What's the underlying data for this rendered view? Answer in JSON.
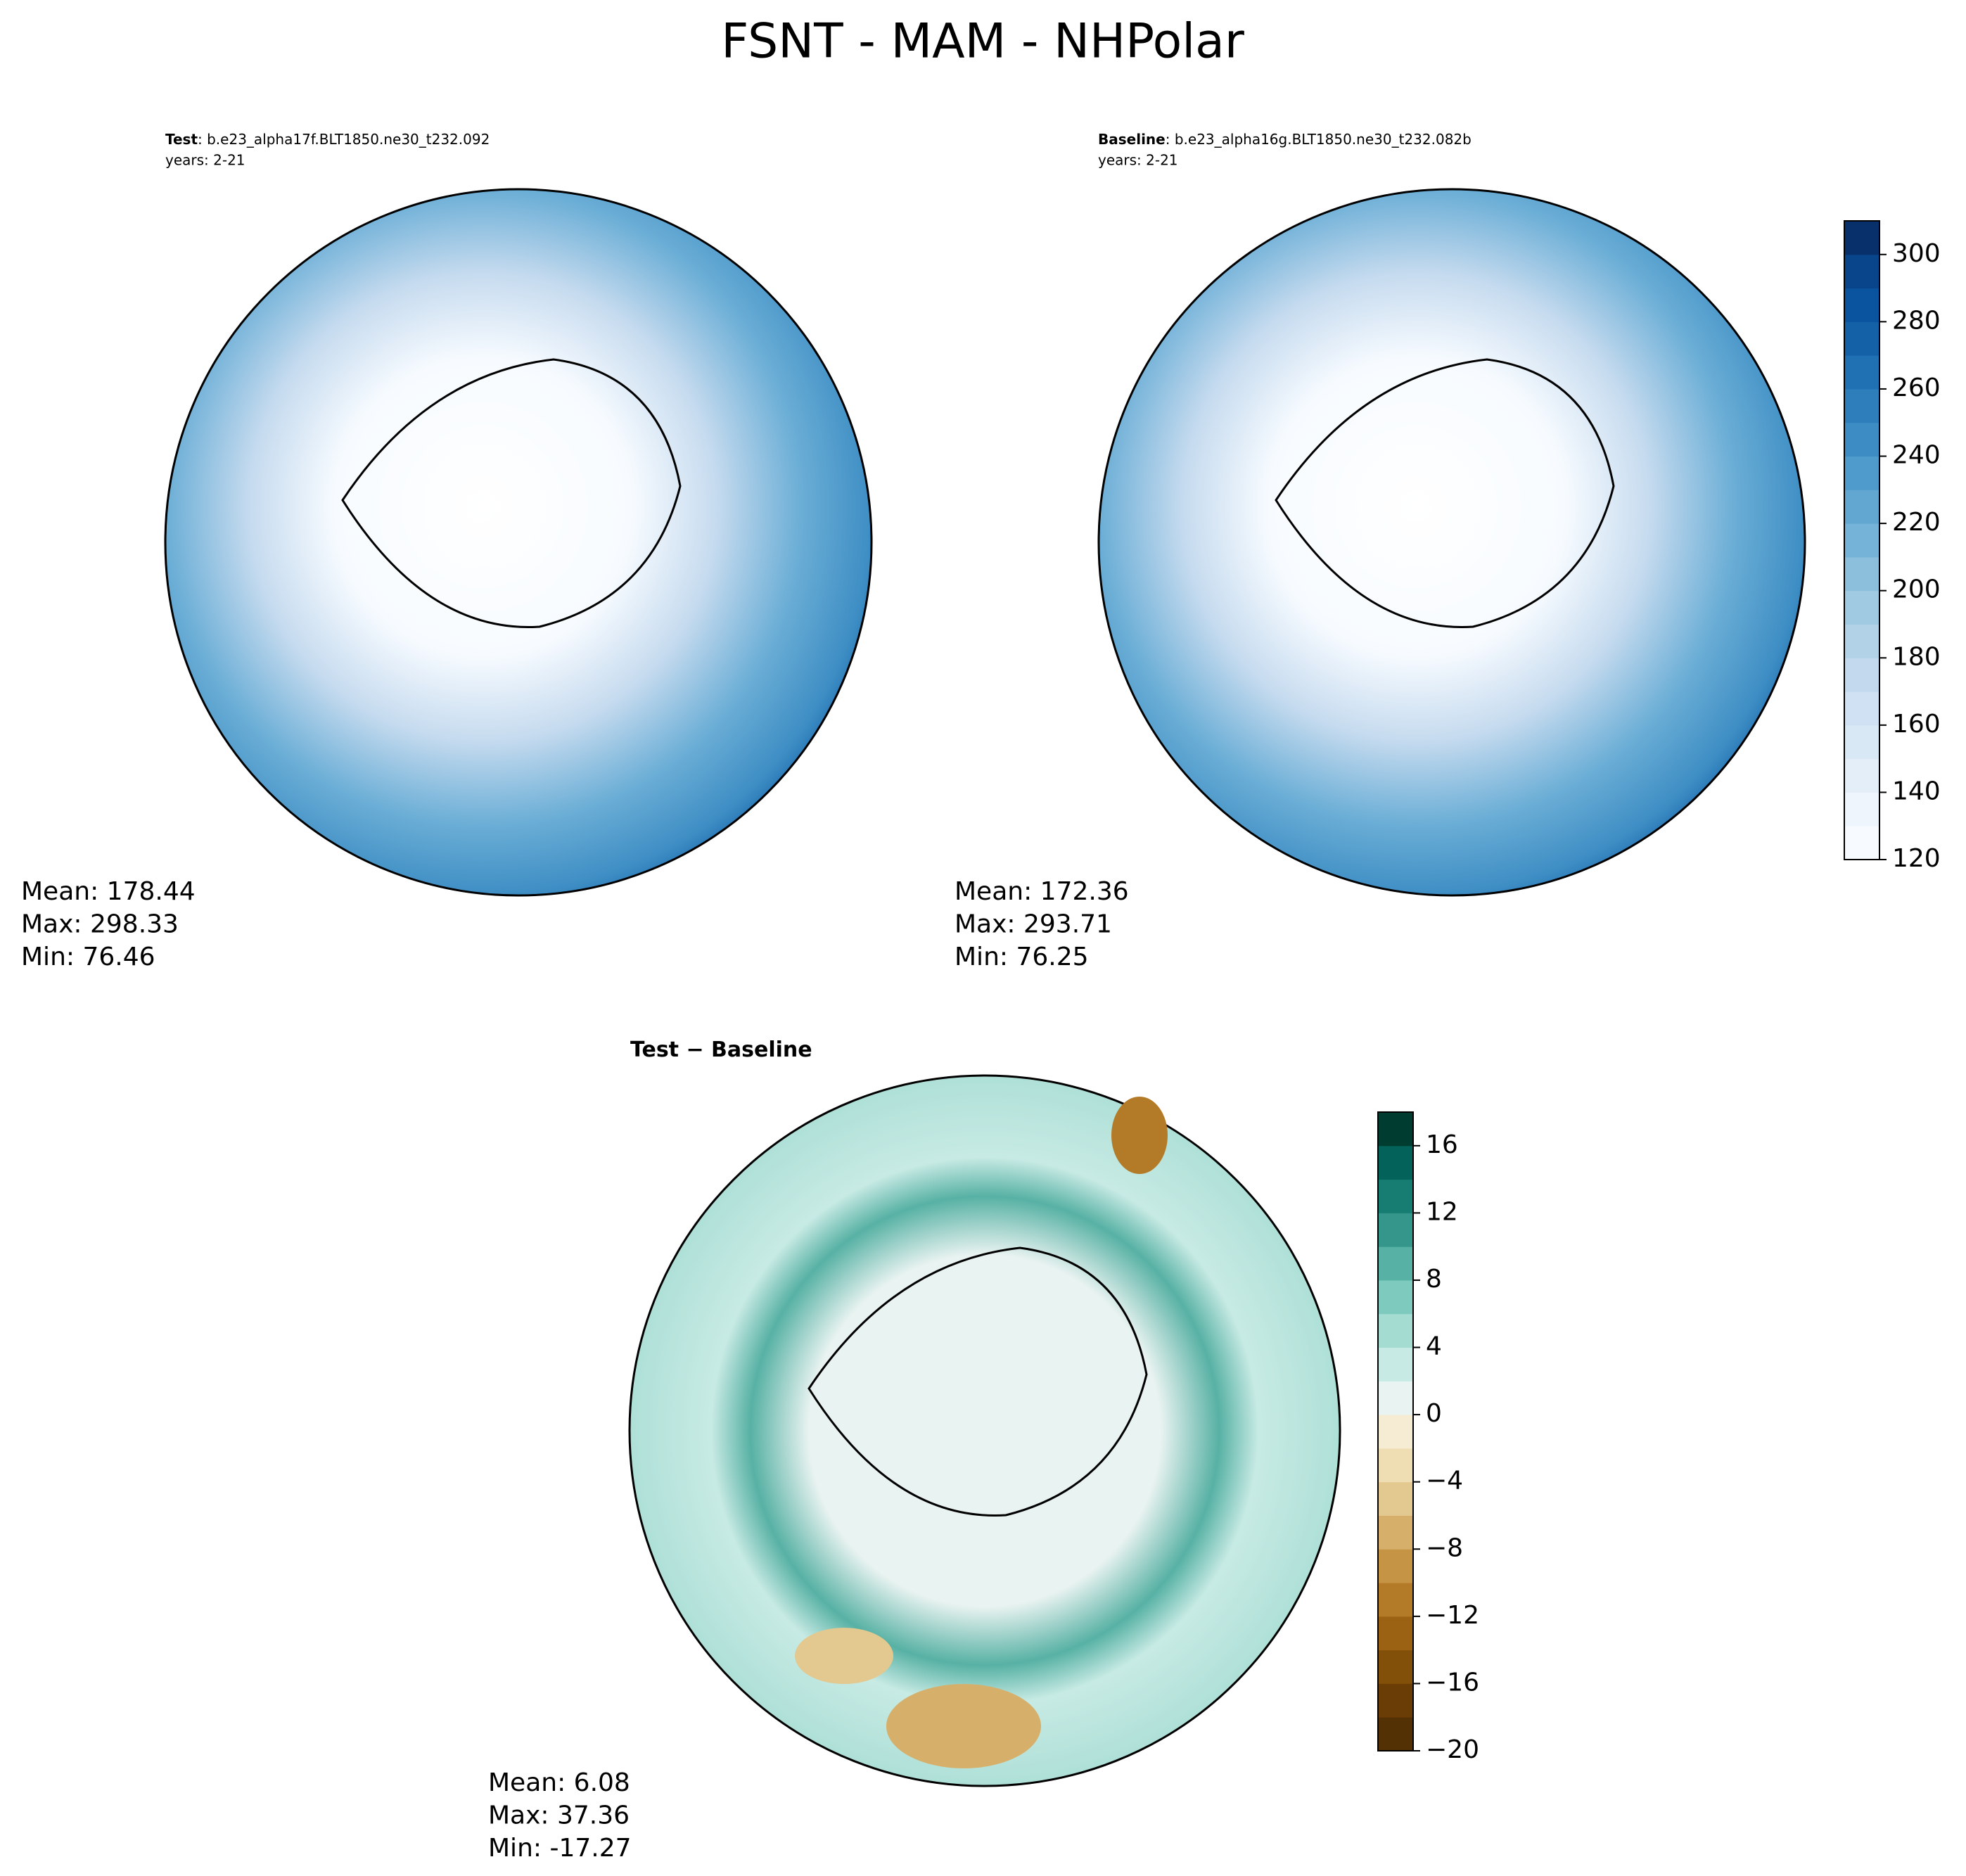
{
  "title": "FSNT - MAM - NHPolar",
  "chart_data": [
    {
      "type": "map",
      "label_bold": "Test",
      "label": ": b.e23_alpha17f.BLT1850.ne30_t232.092",
      "subtitle": "years: 2-21",
      "stats": [
        "Mean: 178.44",
        "Max: 298.33",
        "Min: 76.46"
      ]
    },
    {
      "type": "map",
      "label_bold": "Baseline",
      "label": ": b.e23_alpha16g.BLT1850.ne30_t232.082b",
      "subtitle": "years: 2-21",
      "stats": [
        "Mean: 172.36",
        "Max: 293.71",
        "Min: 76.25"
      ],
      "ylim": [
        120,
        310
      ],
      "yticks": [
        120,
        140,
        160,
        180,
        200,
        220,
        240,
        260,
        280,
        300
      ],
      "colors": [
        "#f7fbff",
        "#eef5fc",
        "#e3eef9",
        "#d9e8f5",
        "#cfe1f2",
        "#c2d9ee",
        "#b2d2e8",
        "#a0cae1",
        "#8bbfdc",
        "#75b4d8",
        "#61a7d2",
        "#4f9bcb",
        "#3d8dc4",
        "#2e7ebc",
        "#2070b4",
        "#1461a8",
        "#0a539e",
        "#08458a",
        "#08306b"
      ]
    },
    {
      "type": "diff-map",
      "label_bold": "Test − Baseline",
      "stats": [
        "Mean:  6.08",
        "Max: 37.36",
        "Min: -17.27"
      ],
      "ylim": [
        -20,
        18
      ],
      "yticks": [
        {
          "value": -20,
          "label": "−20"
        },
        {
          "value": -16,
          "label": "−16"
        },
        {
          "value": -12,
          "label": "−12"
        },
        {
          "value": -8,
          "label": "−8"
        },
        {
          "value": -4,
          "label": "−4"
        },
        0,
        4,
        8,
        12,
        16
      ],
      "colors": [
        "#543005",
        "#6a3d07",
        "#835009",
        "#9c6214",
        "#b37a28",
        "#c69445",
        "#d6b06b",
        "#e3c88f",
        "#efddb4",
        "#f6ecd4",
        "#e9f3f1",
        "#c7eae4",
        "#a4dcd2",
        "#7ecabe",
        "#57b1a4",
        "#35978b",
        "#177d72",
        "#03635a",
        "#003c30"
      ]
    }
  ]
}
